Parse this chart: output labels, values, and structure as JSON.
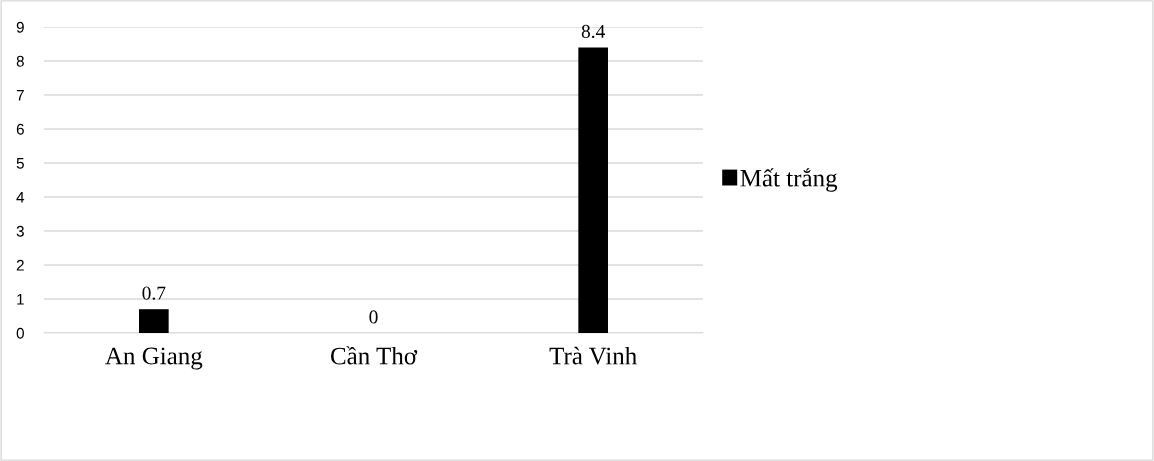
{
  "chart_data": {
    "type": "bar",
    "categories": [
      "An Giang",
      "Cần Thơ",
      "Trà Vinh"
    ],
    "series": [
      {
        "name": "Mất trắng",
        "color": "#000000",
        "values": [
          0.7,
          0,
          8.4
        ]
      }
    ],
    "ylim": [
      0,
      9
    ],
    "yticks": [
      0,
      1,
      2,
      3,
      4,
      5,
      6,
      7,
      8,
      9
    ],
    "grid": "y",
    "legend": "right",
    "data_labels": true
  }
}
